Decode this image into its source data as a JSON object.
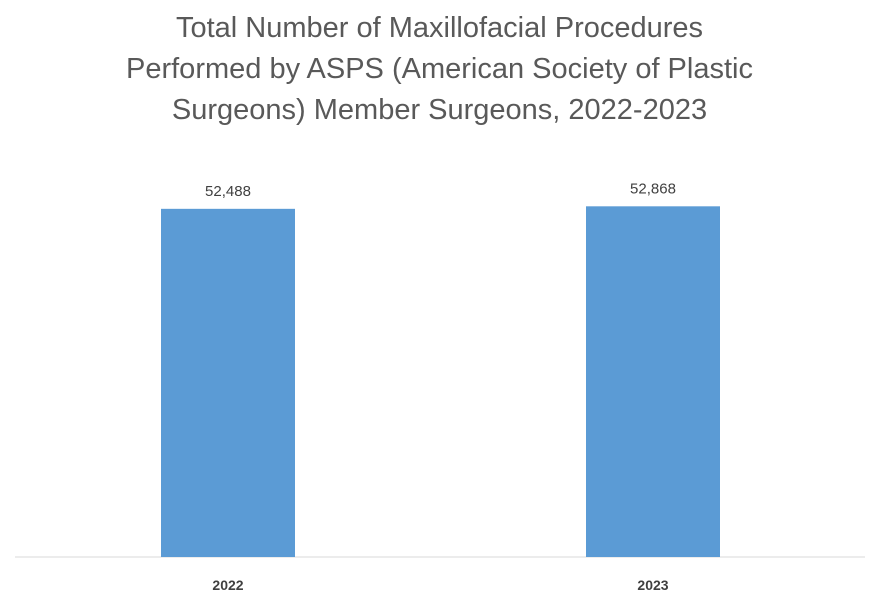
{
  "chart_data": {
    "type": "bar",
    "title_lines": [
      "Total Number of Maxillofacial Procedures",
      "Performed by ASPS (American Society of Plastic",
      "Surgeons) Member Surgeons, 2022-2023"
    ],
    "categories": [
      "2022",
      "2023"
    ],
    "values": [
      52488,
      52868
    ],
    "data_labels": [
      "52,488",
      "52,868"
    ],
    "xlabel": "",
    "ylabel": "",
    "ylim": [
      0,
      60000
    ],
    "grid": false,
    "legend": "none",
    "bar_color": "#5B9BD5"
  }
}
